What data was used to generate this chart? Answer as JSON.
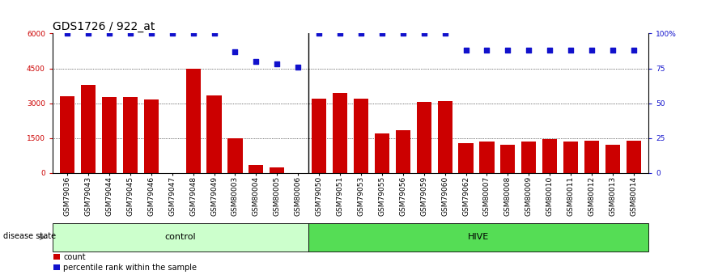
{
  "title": "GDS1726 / 922_at",
  "categories": [
    "GSM79036",
    "GSM79043",
    "GSM79044",
    "GSM79045",
    "GSM79046",
    "GSM79047",
    "GSM79048",
    "GSM79049",
    "GSM80003",
    "GSM80004",
    "GSM80005",
    "GSM80006",
    "GSM79050",
    "GSM79051",
    "GSM79053",
    "GSM79055",
    "GSM79056",
    "GSM79059",
    "GSM79060",
    "GSM79062",
    "GSM80007",
    "GSM80008",
    "GSM80009",
    "GSM80010",
    "GSM80011",
    "GSM80012",
    "GSM80013",
    "GSM80014"
  ],
  "bar_values": [
    3300,
    3800,
    3250,
    3250,
    3150,
    0,
    4500,
    3350,
    1480,
    350,
    230,
    0,
    3200,
    3450,
    3200,
    1700,
    1850,
    3050,
    3100,
    1300,
    1350,
    1200,
    1350,
    1450,
    1350,
    1400,
    1200,
    1400
  ],
  "percentile_values": [
    100,
    100,
    100,
    100,
    100,
    100,
    100,
    100,
    87,
    80,
    78,
    76,
    100,
    100,
    100,
    100,
    100,
    100,
    100,
    88,
    88,
    88,
    88,
    88,
    88,
    88,
    88,
    88
  ],
  "control_count": 12,
  "hive_count": 16,
  "group_labels": [
    "control",
    "HIVE"
  ],
  "bar_color": "#cc0000",
  "dot_color": "#1111cc",
  "control_bg": "#ccffcc",
  "hive_bg": "#55dd55",
  "ylim_left": [
    0,
    6000
  ],
  "ylim_right": [
    0,
    100
  ],
  "yticks_left": [
    0,
    1500,
    3000,
    4500,
    6000
  ],
  "ytick_labels_left": [
    "0",
    "1500",
    "3000",
    "4500",
    "6000"
  ],
  "yticks_right": [
    0,
    25,
    50,
    75,
    100
  ],
  "ytick_labels_right": [
    "0",
    "25",
    "50",
    "75",
    "100%"
  ],
  "grid_values": [
    1500,
    3000,
    4500
  ],
  "legend_items": [
    "count",
    "percentile rank within the sample"
  ],
  "disease_state_label": "disease state",
  "title_fontsize": 10,
  "tick_fontsize": 6.5,
  "label_fontsize": 8
}
